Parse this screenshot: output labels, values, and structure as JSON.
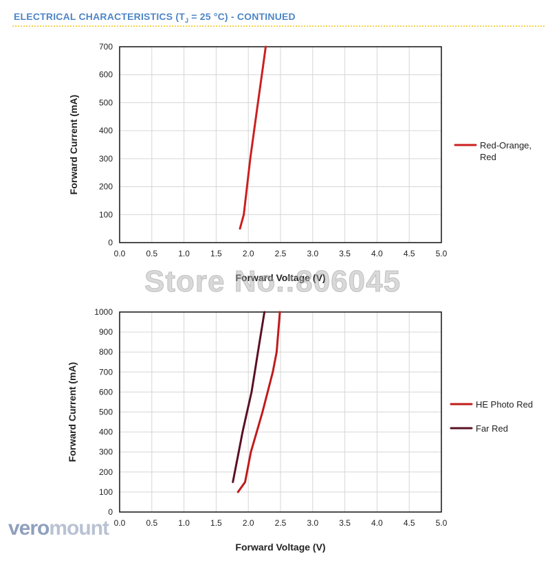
{
  "header": {
    "title_prefix": "ELECTRICAL CHARACTERISTICS (T",
    "title_sub": "J",
    "title_suffix": " = 25 °C) - CONTINUED"
  },
  "watermark": "Store No.:806045",
  "logo": {
    "part1": "vero",
    "part2": "mount"
  },
  "chart_data": [
    {
      "type": "line",
      "xlabel": "Forward Voltage (V)",
      "ylabel": "Forward Current (mA)",
      "xlim": [
        0,
        5
      ],
      "ylim": [
        0,
        700
      ],
      "xticks": [
        "0.0",
        "0.5",
        "1.0",
        "1.5",
        "2.0",
        "2.5",
        "3.0",
        "3.5",
        "4.0",
        "4.5",
        "5.0"
      ],
      "yticks": [
        "0",
        "100",
        "200",
        "300",
        "400",
        "500",
        "600",
        "700"
      ],
      "grid": true,
      "legend_position": "right",
      "series": [
        {
          "name_line1": "Red-Orange,",
          "name_line2": "Red",
          "color": "#cc1f1f",
          "x": [
            1.87,
            1.93,
            1.98,
            2.03,
            2.09,
            2.15,
            2.21,
            2.27
          ],
          "y": [
            50,
            100,
            200,
            300,
            400,
            500,
            600,
            700
          ]
        }
      ]
    },
    {
      "type": "line",
      "xlabel": "Forward Voltage (V)",
      "ylabel": "Forward Current (mA)",
      "xlim": [
        0,
        5
      ],
      "ylim": [
        0,
        1000
      ],
      "xticks": [
        "0.0",
        "0.5",
        "1.0",
        "1.5",
        "2.0",
        "2.5",
        "3.0",
        "3.5",
        "4.0",
        "4.5",
        "5.0"
      ],
      "yticks": [
        "0",
        "100",
        "200",
        "300",
        "400",
        "500",
        "600",
        "700",
        "800",
        "900",
        "1000"
      ],
      "grid": true,
      "legend_position": "right",
      "series": [
        {
          "name": "HE Photo Red",
          "color": "#c01a1a",
          "x": [
            1.84,
            1.95,
            2.04,
            2.13,
            2.22,
            2.3,
            2.38,
            2.44,
            2.49
          ],
          "y": [
            100,
            150,
            300,
            400,
            500,
            600,
            700,
            800,
            1000
          ]
        },
        {
          "name": "Far Red",
          "color": "#5a1024",
          "x": [
            1.76,
            1.85,
            1.91,
            1.98,
            2.05,
            2.1,
            2.15,
            2.2,
            2.25
          ],
          "y": [
            150,
            300,
            400,
            500,
            600,
            700,
            800,
            900,
            1000
          ]
        }
      ]
    }
  ]
}
